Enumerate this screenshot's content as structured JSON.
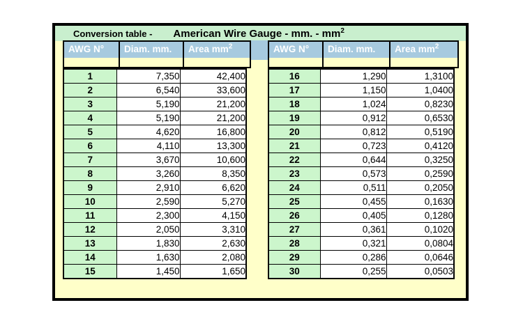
{
  "title": {
    "prefix": "Conversion table -",
    "main": "American Wire Gauge - mm. - mm",
    "main_sup": "2"
  },
  "table": {
    "columns": {
      "awg": "AWG N°",
      "diam": "Diam. mm.",
      "area_base": "Area mm",
      "area_sup": "2"
    },
    "left_rows": [
      {
        "awg": "1",
        "diam": "7,350",
        "area": "42,400"
      },
      {
        "awg": "2",
        "diam": "6,540",
        "area": "33,600"
      },
      {
        "awg": "3",
        "diam": "5,190",
        "area": "21,200"
      },
      {
        "awg": "4",
        "diam": "5,190",
        "area": "21,200"
      },
      {
        "awg": "5",
        "diam": "4,620",
        "area": "16,800"
      },
      {
        "awg": "6",
        "diam": "4,110",
        "area": "13,300"
      },
      {
        "awg": "7",
        "diam": "3,670",
        "area": "10,600"
      },
      {
        "awg": "8",
        "diam": "3,260",
        "area": "8,350"
      },
      {
        "awg": "9",
        "diam": "2,910",
        "area": "6,620"
      },
      {
        "awg": "10",
        "diam": "2,590",
        "area": "5,270"
      },
      {
        "awg": "11",
        "diam": "2,300",
        "area": "4,150"
      },
      {
        "awg": "12",
        "diam": "2,050",
        "area": "3,310"
      },
      {
        "awg": "13",
        "diam": "1,830",
        "area": "2,630"
      },
      {
        "awg": "14",
        "diam": "1,630",
        "area": "2,080"
      },
      {
        "awg": "15",
        "diam": "1,450",
        "area": "1,650"
      }
    ],
    "right_rows": [
      {
        "awg": "16",
        "diam": "1,290",
        "area": "1,3100"
      },
      {
        "awg": "17",
        "diam": "1,150",
        "area": "1,0400"
      },
      {
        "awg": "18",
        "diam": "1,024",
        "area": "0,8230"
      },
      {
        "awg": "19",
        "diam": "0,912",
        "area": "0,6530"
      },
      {
        "awg": "20",
        "diam": "0,812",
        "area": "0,5190"
      },
      {
        "awg": "21",
        "diam": "0,723",
        "area": "0,4120"
      },
      {
        "awg": "22",
        "diam": "0,644",
        "area": "0,3250"
      },
      {
        "awg": "23",
        "diam": "0,573",
        "area": "0,2590"
      },
      {
        "awg": "24",
        "diam": "0,511",
        "area": "0,2050"
      },
      {
        "awg": "25",
        "diam": "0,455",
        "area": "0,1630"
      },
      {
        "awg": "26",
        "diam": "0,405",
        "area": "0,1280"
      },
      {
        "awg": "27",
        "diam": "0,361",
        "area": "0,1020"
      },
      {
        "awg": "28",
        "diam": "0,321",
        "area": "0,0804"
      },
      {
        "awg": "29",
        "diam": "0,286",
        "area": "0,0646"
      },
      {
        "awg": "30",
        "diam": "0,255",
        "area": "0,0503"
      }
    ]
  },
  "colors": {
    "title_band_green": "#c9efce",
    "header_blue": "#a7cadf",
    "background_yellow": "#ffffc9",
    "awg_column_green": "#ccf6cc",
    "cell_white": "#ffffff",
    "border_black": "#000000"
  }
}
